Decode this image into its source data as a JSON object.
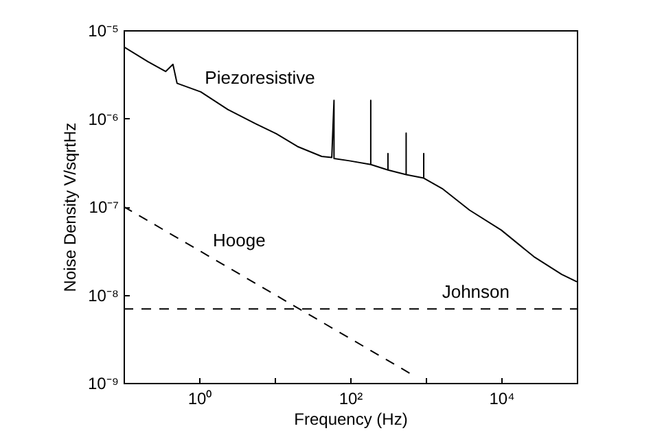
{
  "chart_data": {
    "type": "line",
    "xlabel": "Frequency (Hz)",
    "ylabel": "Noise Density V/sqrtHz",
    "log": "xy",
    "grid": false,
    "marker": "none",
    "xlim": [
      0.1,
      100000
    ],
    "ylim": [
      1e-09,
      1e-05
    ],
    "xticks": [
      {
        "value": 1,
        "label": "10⁰"
      },
      {
        "value": 10,
        "label": null
      },
      {
        "value": 100,
        "label": "10²"
      },
      {
        "value": 1000,
        "label": null
      },
      {
        "value": 10000,
        "label": "10⁴"
      }
    ],
    "yticks": [
      {
        "value": 1e-09,
        "label": "10⁻⁹"
      },
      {
        "value": 1e-08,
        "label": "10⁻⁸"
      },
      {
        "value": 1e-07,
        "label": "10⁻⁷"
      },
      {
        "value": 1e-06,
        "label": "10⁻⁶"
      },
      {
        "value": 1e-05,
        "label": "10⁻⁵"
      }
    ],
    "series": [
      {
        "name": "Piezoresistive",
        "color": "#000000",
        "line_style": "solid",
        "x": [
          0.1,
          0.21,
          0.36,
          0.45,
          0.51,
          1.05,
          2.4,
          5.6,
          10.5,
          20,
          42,
          57,
          61,
          61,
          98,
          187,
          187,
          187,
          316,
          316,
          316,
          550,
          550,
          550,
          940,
          940,
          940,
          1650,
          3800,
          10000,
          27000,
          63000,
          100000
        ],
        "values": [
          6.5e-06,
          4.4e-06,
          3.4e-06,
          4.1e-06,
          2.5e-06,
          2e-06,
          1.26e-06,
          8.7e-07,
          6.7e-07,
          4.8e-07,
          3.7e-07,
          3.6e-07,
          1.6e-06,
          3.5e-07,
          3.3e-07,
          3e-07,
          1.6e-06,
          3e-07,
          2.6e-07,
          4e-07,
          2.6e-07,
          2.3e-07,
          6.8e-07,
          2.3e-07,
          2.1e-07,
          4e-07,
          2.1e-07,
          1.6e-07,
          9.1e-08,
          5.4e-08,
          2.7e-08,
          1.7e-08,
          1.4e-08
        ]
      },
      {
        "name": "Hooge",
        "color": "#000000",
        "line_style": "dashed",
        "x": [
          0.1,
          650
        ],
        "values": [
          1e-07,
          1.25e-09
        ]
      },
      {
        "name": "Johnson",
        "color": "#000000",
        "line_style": "dashed",
        "x": [
          0.1,
          100000
        ],
        "values": [
          6.9e-09,
          6.9e-09
        ]
      }
    ]
  }
}
